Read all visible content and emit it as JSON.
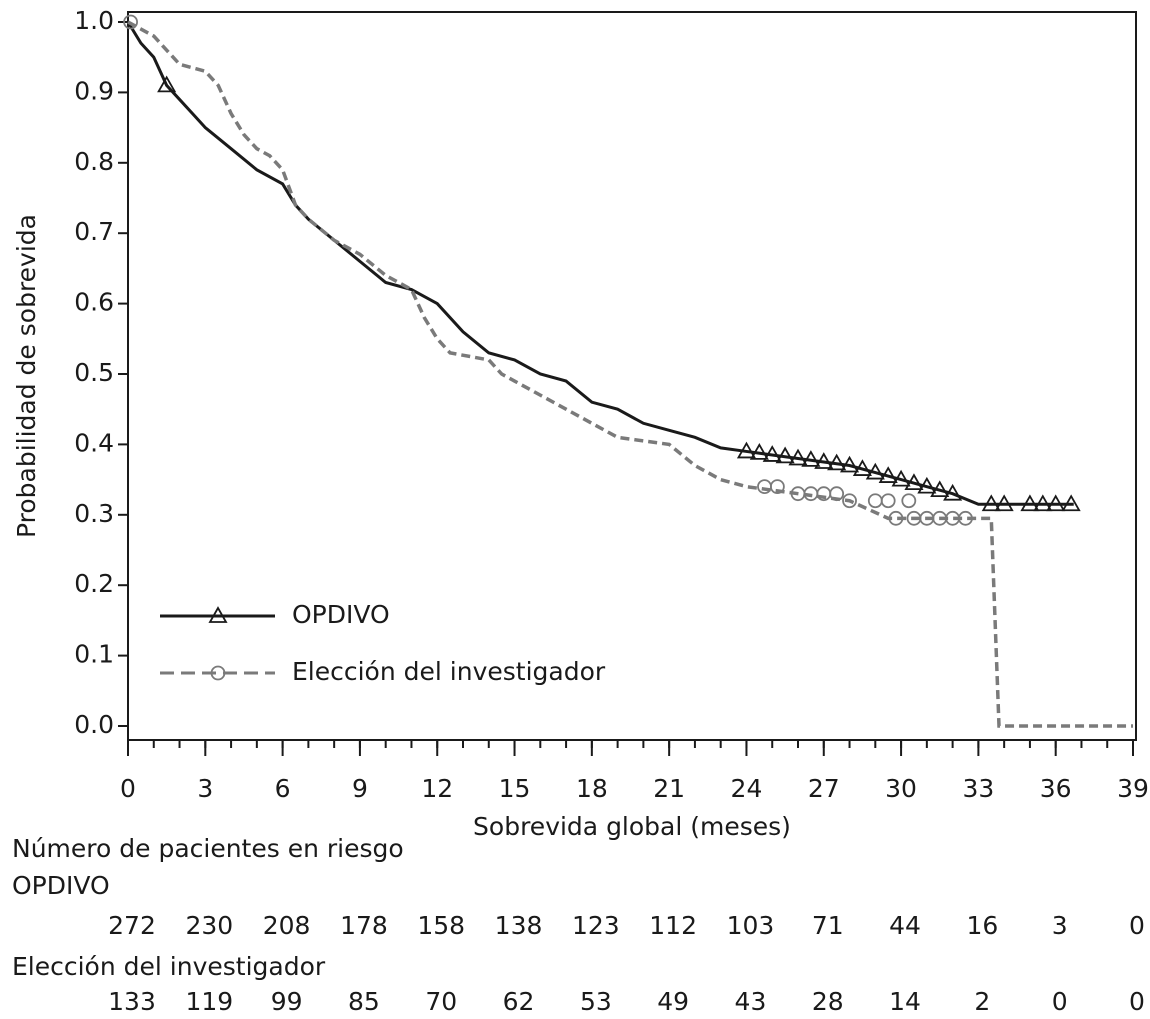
{
  "chart_data": {
    "type": "line",
    "ylabel": "Probabilidad de sobrevida",
    "xlabel": "Sobrevida global (meses)",
    "xlim": [
      0,
      39
    ],
    "xticks": [
      0,
      3,
      6,
      9,
      12,
      15,
      18,
      21,
      24,
      27,
      30,
      33,
      36,
      39
    ],
    "xminorticks": [
      0,
      1,
      2,
      3,
      4,
      5,
      6,
      7,
      8,
      9,
      10,
      11,
      12,
      13,
      14,
      15,
      16,
      17,
      18,
      19,
      20,
      21,
      22,
      23,
      24,
      25,
      26,
      27,
      28,
      29,
      30,
      31,
      32,
      33,
      34,
      35,
      36,
      37,
      38,
      39
    ],
    "ylim": [
      0,
      1
    ],
    "yticks": [
      {
        "value": 0,
        "label": "0.0"
      },
      0.1,
      0.2,
      0.3,
      0.4,
      0.5,
      0.6,
      0.7,
      0.8,
      0.9,
      {
        "value": 1,
        "label": "1.0"
      }
    ],
    "series": [
      {
        "name": "OPDIVO",
        "color": "#1a1a1a",
        "marker": "triangle",
        "x": [
          0,
          0.5,
          1,
          1.5,
          2,
          2.5,
          3,
          4,
          5,
          6,
          6.5,
          7,
          8,
          9,
          10,
          11,
          12,
          13,
          14,
          15,
          16,
          17,
          18,
          19,
          20,
          21,
          22,
          23,
          24,
          25,
          26,
          27,
          28,
          29,
          30,
          31,
          32,
          33,
          36.7
        ],
        "values": [
          1.0,
          0.97,
          0.95,
          0.91,
          0.89,
          0.87,
          0.85,
          0.82,
          0.79,
          0.77,
          0.74,
          0.72,
          0.69,
          0.66,
          0.63,
          0.62,
          0.6,
          0.56,
          0.53,
          0.52,
          0.5,
          0.49,
          0.46,
          0.45,
          0.43,
          0.42,
          0.41,
          0.395,
          0.39,
          0.385,
          0.38,
          0.375,
          0.37,
          0.36,
          0.35,
          0.34,
          0.33,
          0.315,
          0.315
        ],
        "censored": {
          "x": [
            1.5,
            24,
            24.5,
            25,
            25.5,
            26,
            26.5,
            27,
            27.5,
            28,
            28.5,
            29,
            29.5,
            30,
            30.5,
            31,
            31.5,
            32,
            33.5,
            34,
            35,
            35.5,
            36,
            36.6
          ],
          "values": [
            0.91,
            0.39,
            0.388,
            0.385,
            0.383,
            0.38,
            0.378,
            0.375,
            0.373,
            0.37,
            0.365,
            0.36,
            0.355,
            0.35,
            0.345,
            0.34,
            0.335,
            0.33,
            0.315,
            0.315,
            0.315,
            0.315,
            0.315,
            0.315
          ]
        }
      },
      {
        "name": "Elección del investigador",
        "color": "#7a7a7a",
        "marker": "circle",
        "x": [
          0,
          0.5,
          1,
          1.5,
          2,
          3,
          3.5,
          4,
          4.5,
          5,
          5.5,
          6,
          6.5,
          7,
          8,
          9,
          10,
          11,
          11.5,
          12,
          12.5,
          14,
          14.5,
          15,
          16,
          17,
          18,
          19,
          21,
          22,
          23,
          24,
          26,
          28,
          29.5,
          33.5,
          33.8,
          39
        ],
        "values": [
          1.0,
          0.99,
          0.98,
          0.96,
          0.94,
          0.93,
          0.91,
          0.87,
          0.84,
          0.82,
          0.81,
          0.79,
          0.74,
          0.72,
          0.69,
          0.67,
          0.64,
          0.62,
          0.58,
          0.55,
          0.53,
          0.52,
          0.5,
          0.49,
          0.47,
          0.45,
          0.43,
          0.41,
          0.4,
          0.37,
          0.35,
          0.34,
          0.33,
          0.32,
          0.295,
          0.295,
          0,
          0
        ],
        "censored": {
          "x": [
            0.1,
            24.7,
            25.2,
            26,
            26.5,
            27,
            27.5,
            28,
            29,
            29.5,
            30.3,
            29.8,
            30.5,
            31,
            31.5,
            32,
            32.5
          ],
          "values": [
            1.0,
            0.34,
            0.34,
            0.33,
            0.33,
            0.33,
            0.33,
            0.32,
            0.32,
            0.32,
            0.32,
            0.295,
            0.295,
            0.295,
            0.295,
            0.295,
            0.295
          ]
        }
      }
    ],
    "at_risk": {
      "title": "Número de pacientes en riesgo",
      "x": [
        0,
        3,
        6,
        9,
        12,
        15,
        18,
        21,
        24,
        27,
        30,
        33,
        36,
        39
      ],
      "rows": [
        [
          272,
          230,
          208,
          178,
          158,
          138,
          123,
          112,
          103,
          71,
          44,
          16,
          3,
          0
        ],
        [
          133,
          119,
          99,
          85,
          70,
          62,
          53,
          49,
          43,
          28,
          14,
          2,
          0,
          0
        ]
      ]
    }
  }
}
